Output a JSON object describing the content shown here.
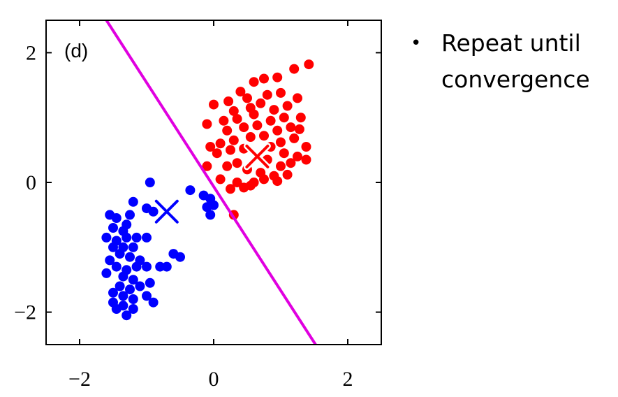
{
  "chart_data": {
    "type": "scatter",
    "panel_label": "(d)",
    "title": "",
    "xlabel": "",
    "ylabel": "",
    "xlim": [
      -2.5,
      2.5
    ],
    "ylim": [
      -2.5,
      2.5
    ],
    "x_ticks": [
      -2,
      0,
      2
    ],
    "y_ticks": [
      -2,
      0,
      2
    ],
    "x_tick_labels": [
      "−2",
      "0",
      "2"
    ],
    "y_tick_labels": [
      "−2",
      "0",
      "2"
    ],
    "grid": false,
    "series": [
      {
        "color": "#ff0000",
        "points": [
          [
            0.4,
            1.4
          ],
          [
            0.6,
            1.55
          ],
          [
            0.75,
            1.6
          ],
          [
            0.95,
            1.62
          ],
          [
            1.2,
            1.75
          ],
          [
            1.42,
            1.82
          ],
          [
            0.0,
            1.2
          ],
          [
            0.22,
            1.25
          ],
          [
            0.5,
            1.3
          ],
          [
            0.8,
            1.35
          ],
          [
            1.0,
            1.38
          ],
          [
            1.25,
            1.3
          ],
          [
            0.3,
            1.1
          ],
          [
            0.55,
            1.15
          ],
          [
            0.7,
            1.22
          ],
          [
            0.9,
            1.12
          ],
          [
            1.1,
            1.18
          ],
          [
            1.3,
            1.0
          ],
          [
            -0.1,
            0.9
          ],
          [
            0.15,
            0.95
          ],
          [
            0.35,
            0.98
          ],
          [
            0.6,
            1.05
          ],
          [
            0.85,
            0.95
          ],
          [
            1.05,
            1.0
          ],
          [
            1.28,
            0.82
          ],
          [
            0.2,
            0.8
          ],
          [
            0.45,
            0.85
          ],
          [
            0.65,
            0.88
          ],
          [
            0.95,
            0.8
          ],
          [
            1.15,
            0.85
          ],
          [
            0.1,
            0.6
          ],
          [
            0.3,
            0.65
          ],
          [
            0.55,
            0.7
          ],
          [
            0.75,
            0.72
          ],
          [
            1.0,
            0.62
          ],
          [
            1.2,
            0.68
          ],
          [
            1.38,
            0.55
          ],
          [
            0.05,
            0.45
          ],
          [
            0.25,
            0.5
          ],
          [
            0.45,
            0.52
          ],
          [
            0.85,
            0.55
          ],
          [
            1.05,
            0.45
          ],
          [
            1.25,
            0.4
          ],
          [
            -0.05,
            0.55
          ],
          [
            0.35,
            0.3
          ],
          [
            0.8,
            0.35
          ],
          [
            1.0,
            0.25
          ],
          [
            1.15,
            0.3
          ],
          [
            1.38,
            0.35
          ],
          [
            0.2,
            0.25
          ],
          [
            0.5,
            0.2
          ],
          [
            0.7,
            0.15
          ],
          [
            0.9,
            0.1
          ],
          [
            1.1,
            0.12
          ],
          [
            0.1,
            0.05
          ],
          [
            0.35,
            0.0
          ],
          [
            0.55,
            -0.05
          ],
          [
            0.75,
            0.05
          ],
          [
            0.95,
            0.02
          ],
          [
            0.25,
            -0.1
          ],
          [
            0.45,
            -0.08
          ],
          [
            0.6,
            0.0
          ],
          [
            -0.1,
            0.25
          ],
          [
            0.3,
            -0.5
          ]
        ]
      },
      {
        "color": "#0000ff",
        "points": [
          [
            -0.95,
            0.0
          ],
          [
            -0.35,
            -0.12
          ],
          [
            -0.15,
            -0.2
          ],
          [
            -0.05,
            -0.25
          ],
          [
            0.0,
            -0.35
          ],
          [
            -0.1,
            -0.38
          ],
          [
            -0.05,
            -0.5
          ],
          [
            -1.2,
            -0.3
          ],
          [
            -1.0,
            -0.4
          ],
          [
            -0.9,
            -0.45
          ],
          [
            -1.25,
            -0.5
          ],
          [
            -1.55,
            -0.5
          ],
          [
            -1.45,
            -0.55
          ],
          [
            -1.3,
            -0.65
          ],
          [
            -1.5,
            -0.7
          ],
          [
            -1.35,
            -0.75
          ],
          [
            -1.6,
            -0.85
          ],
          [
            -1.45,
            -0.9
          ],
          [
            -1.3,
            -0.85
          ],
          [
            -1.15,
            -0.85
          ],
          [
            -1.0,
            -0.85
          ],
          [
            -1.5,
            -1.0
          ],
          [
            -1.35,
            -1.0
          ],
          [
            -1.2,
            -1.0
          ],
          [
            -1.4,
            -1.1
          ],
          [
            -1.25,
            -1.15
          ],
          [
            -1.55,
            -1.2
          ],
          [
            -1.1,
            -1.2
          ],
          [
            -0.6,
            -1.1
          ],
          [
            -0.5,
            -1.15
          ],
          [
            -1.45,
            -1.3
          ],
          [
            -1.3,
            -1.35
          ],
          [
            -1.15,
            -1.3
          ],
          [
            -1.0,
            -1.3
          ],
          [
            -0.8,
            -1.3
          ],
          [
            -0.7,
            -1.3
          ],
          [
            -1.6,
            -1.4
          ],
          [
            -1.35,
            -1.45
          ],
          [
            -1.2,
            -1.5
          ],
          [
            -1.4,
            -1.6
          ],
          [
            -1.25,
            -1.65
          ],
          [
            -1.1,
            -1.6
          ],
          [
            -0.95,
            -1.55
          ],
          [
            -1.5,
            -1.7
          ],
          [
            -1.35,
            -1.75
          ],
          [
            -1.2,
            -1.8
          ],
          [
            -1.5,
            -1.85
          ],
          [
            -1.35,
            -1.9
          ],
          [
            -1.0,
            -1.75
          ],
          [
            -0.9,
            -1.85
          ],
          [
            -1.45,
            -1.95
          ],
          [
            -1.2,
            -1.95
          ],
          [
            -1.3,
            -2.05
          ]
        ]
      }
    ],
    "centroids": [
      {
        "x": 0.65,
        "y": 0.4,
        "color": "#ff0000"
      },
      {
        "x": -0.7,
        "y": -0.45,
        "color": "#0000ff"
      }
    ],
    "decision_boundary": {
      "color": "#e000e0",
      "from": [
        -1.6,
        2.5
      ],
      "to": [
        1.52,
        -2.5
      ]
    }
  },
  "bullets": [
    "Repeat until convergence"
  ]
}
